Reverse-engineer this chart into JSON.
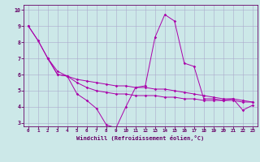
{
  "background_color": "#cce8e8",
  "line_color": "#aa00aa",
  "grid_color": "#aaaacc",
  "xlabel": "Windchill (Refroidissement éolien,°C)",
  "xlim": [
    -0.5,
    23.5
  ],
  "ylim": [
    2.8,
    10.3
  ],
  "xticks": [
    0,
    1,
    2,
    3,
    4,
    5,
    6,
    7,
    8,
    9,
    10,
    11,
    12,
    13,
    14,
    15,
    16,
    17,
    18,
    19,
    20,
    21,
    22,
    23
  ],
  "yticks": [
    3,
    4,
    5,
    6,
    7,
    8,
    9,
    10
  ],
  "series_a_x": [
    0,
    1,
    2,
    3,
    4,
    5,
    6,
    7,
    8,
    9,
    10,
    11,
    12,
    13,
    14,
    15,
    16,
    17,
    18,
    19,
    20,
    21,
    22,
    23
  ],
  "series_a_y": [
    9.0,
    8.1,
    7.0,
    6.0,
    5.9,
    4.8,
    4.4,
    3.9,
    2.9,
    2.7,
    4.0,
    5.2,
    5.3,
    8.3,
    9.7,
    9.3,
    6.7,
    6.5,
    4.5,
    4.5,
    4.4,
    4.5,
    3.8,
    4.1
  ],
  "series_b_x": [
    0,
    1,
    2,
    3,
    4,
    5,
    6,
    7,
    8,
    9,
    10,
    11,
    12,
    13,
    14,
    15,
    16,
    17,
    18,
    19,
    20,
    21,
    22,
    23
  ],
  "series_b_y": [
    9.0,
    8.1,
    7.0,
    6.2,
    5.9,
    5.7,
    5.6,
    5.5,
    5.4,
    5.3,
    5.3,
    5.2,
    5.2,
    5.1,
    5.1,
    5.0,
    4.9,
    4.8,
    4.7,
    4.6,
    4.5,
    4.5,
    4.4,
    4.3
  ],
  "series_c_x": [
    2,
    3,
    4,
    5,
    6,
    7,
    8,
    9,
    10,
    11,
    12,
    13,
    14,
    15,
    16,
    17,
    18,
    19,
    20,
    21,
    22,
    23
  ],
  "series_c_y": [
    7.0,
    6.0,
    5.9,
    5.5,
    5.2,
    5.0,
    4.9,
    4.8,
    4.8,
    4.7,
    4.7,
    4.7,
    4.6,
    4.6,
    4.5,
    4.5,
    4.4,
    4.4,
    4.4,
    4.4,
    4.3,
    4.3
  ]
}
